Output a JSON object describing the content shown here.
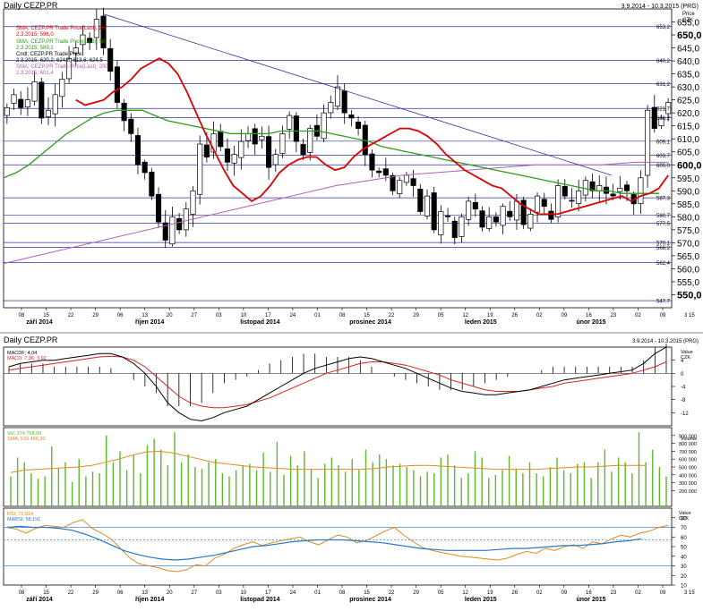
{
  "header": {
    "title": "Daily CEZP.PR",
    "date_range": "3.9.2014 - 10.3.2015 (PRG)",
    "bottom_title": "Daily CEZP.PR",
    "bottom_range": "3.9.2014 - 10.3.2015 (PRG)"
  },
  "price_axis": {
    "label": "Price",
    "unit": "CZK"
  },
  "legend": {
    "sma20": "SMA; CEZP.PR Trade Price(Last); 20",
    "sma20_val": "2.3.2015; 596,0",
    "sma50": "SMA; CEZP.PR Trade Price(Last); 50",
    "sma50_val": "2.3.2015; 589,1",
    "candle": "Cndl; CEZP.PR Trade Price",
    "candle_val": "2.3.2015; 620,2; 624,8; 613,6; 624,5",
    "sma200": "SMA; CEZP.PR Trade Price(Last); 200",
    "sma200_val": "2.3.2015; 601,4"
  },
  "macd_legend": {
    "l1": "MACDF; 4,04",
    "l2": "MACD; 7,96; 3,92",
    "axis_label": "Value",
    "axis_unit": "CZK"
  },
  "vol_legend": {
    "l1": "Vol; 374 758,00",
    "l2": "SMA; 539 466,30",
    "axis_label": "Volume"
  },
  "rsi_legend": {
    "l1": "RSI; 72,814",
    "l2": "MARSI; 58,191",
    "axis_label": "Value",
    "axis_unit": "CZK"
  },
  "colors": {
    "candle": "#000000",
    "sma20": "#dd0000",
    "sma50": "#2f9a1a",
    "sma200": "#b060b0",
    "trendline": "#3030a0",
    "hline": "#3030a0",
    "macd": "#000000",
    "macd_signal": "#dd2020",
    "volume": "#5cb82c",
    "volume_sma": "#e08a20",
    "rsi": "#e08a20",
    "marsi": "#2a78c8",
    "band": "#4a8ad8"
  },
  "chart_data": [
    {
      "type": "candlestick",
      "title": "Daily CEZP.PR",
      "ylabel": "Price CZK",
      "ylim": [
        545,
        660
      ],
      "y_ticks": [
        550,
        555,
        560,
        565,
        570,
        575,
        580,
        585,
        590,
        595,
        600,
        605,
        610,
        615,
        620,
        625,
        630,
        635,
        640,
        645,
        650,
        655
      ],
      "bold_ticks": [
        550,
        600,
        650
      ],
      "level_lines": [
        "653,2",
        "640,2",
        "631,2",
        "621,7",
        "618,2",
        "609,1",
        "603,7",
        "600,0",
        "587,3",
        "580,7",
        "577,5",
        "570,1",
        "568,2",
        "562,4",
        "547,7"
      ],
      "last_label": "3 15",
      "x_day_ticks": [
        "08",
        "15",
        "22",
        "29",
        "06",
        "13",
        "20",
        "27",
        "03",
        "10",
        "17",
        "24",
        "01",
        "08",
        "15",
        "22",
        "29",
        "05",
        "12",
        "19",
        "26",
        "02",
        "09",
        "16",
        "23",
        "02",
        "09"
      ],
      "x_month_labels": [
        "září 2014",
        "říjen 2014",
        "listopad 2014",
        "prosinec 2014",
        "leden 2015",
        "únor 2015"
      ],
      "close": [
        622,
        627,
        622,
        625,
        632,
        618,
        621,
        627,
        633,
        641,
        645,
        650,
        647,
        656,
        645,
        636,
        624,
        617,
        612,
        600,
        597,
        588,
        578,
        571,
        580,
        575,
        583,
        590,
        608,
        603,
        612,
        607,
        601,
        604,
        609,
        612,
        608,
        611,
        599,
        604,
        612,
        619,
        609,
        604,
        614,
        611,
        620,
        624,
        630,
        620,
        618,
        614,
        604,
        598,
        597,
        596,
        590,
        594,
        596,
        592,
        582,
        588,
        575,
        582,
        580,
        572,
        580,
        586,
        583,
        576,
        580,
        578,
        584,
        580,
        586,
        577,
        581,
        588,
        584,
        579,
        592,
        588,
        586,
        590,
        594,
        590,
        592,
        589,
        588,
        591,
        590,
        585,
        595,
        621,
        614,
        618,
        624
      ],
      "sma20": [
        625,
        623,
        624,
        625,
        628,
        630,
        633,
        637,
        639,
        641,
        639,
        635,
        628,
        620,
        612,
        605,
        598,
        592,
        589,
        586,
        588,
        592,
        597,
        600,
        602,
        603,
        603,
        600,
        598,
        599,
        603,
        606,
        608,
        610,
        612,
        614,
        614,
        613,
        611,
        608,
        604,
        601,
        598,
        596,
        594,
        592,
        591,
        588,
        585,
        583,
        581,
        581,
        581,
        582,
        583,
        584,
        585,
        586,
        587,
        588,
        586,
        588,
        589,
        591,
        596
      ],
      "sma50": [
        595,
        597,
        600,
        604,
        608,
        612,
        615,
        618,
        620,
        621,
        621,
        621,
        619,
        617,
        616,
        615,
        614,
        613,
        612,
        612,
        612,
        612,
        613,
        613,
        613,
        613,
        612,
        611,
        610,
        609,
        607,
        606,
        605,
        604,
        603,
        602,
        601,
        600,
        599,
        598,
        597,
        596,
        595,
        594,
        593,
        592,
        591,
        590,
        590,
        589,
        589,
        589,
        589
      ],
      "sma200": [
        562,
        565,
        568,
        571,
        574,
        577,
        580,
        583,
        586,
        589,
        592,
        594,
        596,
        597,
        598,
        599,
        600,
        600,
        600,
        601,
        601
      ],
      "trend_from": [
        0.15,
        658
      ],
      "trend_to": [
        0.91,
        596
      ]
    },
    {
      "type": "line",
      "title": "MACD",
      "ylim": [
        -16,
        8
      ],
      "y_ticks": [
        "4",
        "0",
        "-4",
        "-8",
        "-12"
      ],
      "macd": [
        2,
        3,
        3.5,
        4,
        4,
        4.5,
        5,
        5.5,
        6,
        6,
        5,
        3,
        0,
        -4,
        -9,
        -12,
        -14,
        -14.5,
        -13.5,
        -12,
        -11,
        -10,
        -8,
        -6,
        -4,
        -2,
        0,
        1.5,
        2.5,
        3.5,
        4.5,
        5,
        4.5,
        3.5,
        2.5,
        1.5,
        0,
        -1.5,
        -3,
        -4.5,
        -5.5,
        -6,
        -6.5,
        -6.5,
        -6,
        -5.5,
        -5,
        -4,
        -3,
        -2,
        -1.5,
        -1,
        -0.5,
        0,
        0.5,
        1,
        3,
        6,
        8
      ],
      "signal": [
        1,
        1.5,
        2,
        2.5,
        3,
        3.5,
        4,
        4.5,
        5,
        5.2,
        5,
        4,
        2,
        -1,
        -4,
        -7,
        -9,
        -10,
        -10.5,
        -10.5,
        -10,
        -9.5,
        -8.5,
        -7.5,
        -6,
        -4.5,
        -3,
        -1.5,
        0,
        1,
        2,
        3,
        3.5,
        3.5,
        3,
        2.5,
        1.5,
        0.5,
        -0.5,
        -2,
        -3,
        -4,
        -5,
        -5.5,
        -5.5,
        -5.5,
        -5,
        -4.5,
        -4,
        -3,
        -2.5,
        -2,
        -1.5,
        -1,
        -0.5,
        0,
        1,
        2,
        3.5
      ]
    },
    {
      "type": "bar",
      "title": "Volume",
      "ylim": [
        0,
        1000000
      ],
      "y_ticks": [
        "900 000",
        "800 000",
        "700 000",
        "600 000",
        "500 000",
        "400 000",
        "300 000",
        "200 000"
      ],
      "volume": [
        380,
        620,
        560,
        420,
        350,
        380,
        760,
        480,
        560,
        310,
        600,
        380,
        440,
        420,
        900,
        560,
        700,
        460,
        660,
        420,
        780,
        860,
        720,
        520,
        940,
        560,
        660,
        500,
        480,
        560,
        600,
        420,
        380,
        460,
        520,
        540,
        460,
        680,
        440,
        820,
        400,
        640,
        520,
        700,
        480,
        360,
        540,
        620,
        520,
        440,
        600,
        460,
        720,
        560,
        660,
        600,
        520,
        540,
        500,
        460,
        380,
        440,
        420,
        620,
        660,
        520,
        360,
        420,
        700,
        620,
        360,
        400,
        460,
        640,
        480,
        420,
        560,
        420,
        380,
        500,
        620,
        460,
        420,
        540,
        560,
        360,
        560,
        720,
        440,
        620,
        560,
        420,
        940,
        560,
        720,
        500,
        380
      ],
      "volume_sma": [
        430,
        460,
        470,
        480,
        490,
        500,
        520,
        560,
        600,
        650,
        690,
        700,
        680,
        640,
        600,
        560,
        540,
        520,
        500,
        490,
        480,
        470,
        470,
        470,
        470,
        470,
        470,
        480,
        500,
        510,
        520,
        520,
        510,
        500,
        490,
        480,
        470,
        470,
        470,
        470,
        480,
        490,
        500,
        500,
        510,
        520,
        520,
        520
      ]
    },
    {
      "type": "line",
      "title": "RSI",
      "ylim": [
        10,
        90
      ],
      "y_ticks": [
        "80",
        "70",
        "60",
        "50",
        "40",
        "30",
        "20",
        "10"
      ],
      "band_lines": [
        70,
        57,
        30
      ],
      "rsi": [
        70,
        68,
        64,
        69,
        72,
        71,
        70,
        75,
        78,
        69,
        64,
        58,
        48,
        38,
        32,
        30,
        28,
        25,
        24,
        26,
        31,
        30,
        38,
        42,
        48,
        52,
        55,
        51,
        54,
        56,
        58,
        60,
        55,
        52,
        57,
        62,
        60,
        54,
        56,
        61,
        66,
        70,
        62,
        55,
        49,
        46,
        44,
        42,
        40,
        39,
        38,
        37,
        36,
        38,
        42,
        45,
        43,
        48,
        46,
        50,
        52,
        48,
        55,
        53,
        58,
        62,
        60,
        64,
        66,
        70,
        72
      ],
      "marsi": [
        70,
        71,
        70,
        70,
        69,
        67,
        63,
        58,
        52,
        46,
        42,
        39,
        37,
        36,
        37,
        39,
        41,
        44,
        47,
        50,
        51,
        53,
        55,
        56,
        57,
        57,
        57,
        56,
        55,
        54,
        52,
        50,
        48,
        47,
        46,
        46,
        46,
        46,
        47,
        48,
        48,
        49,
        50,
        51,
        51,
        52,
        53,
        55,
        56,
        58
      ]
    }
  ]
}
